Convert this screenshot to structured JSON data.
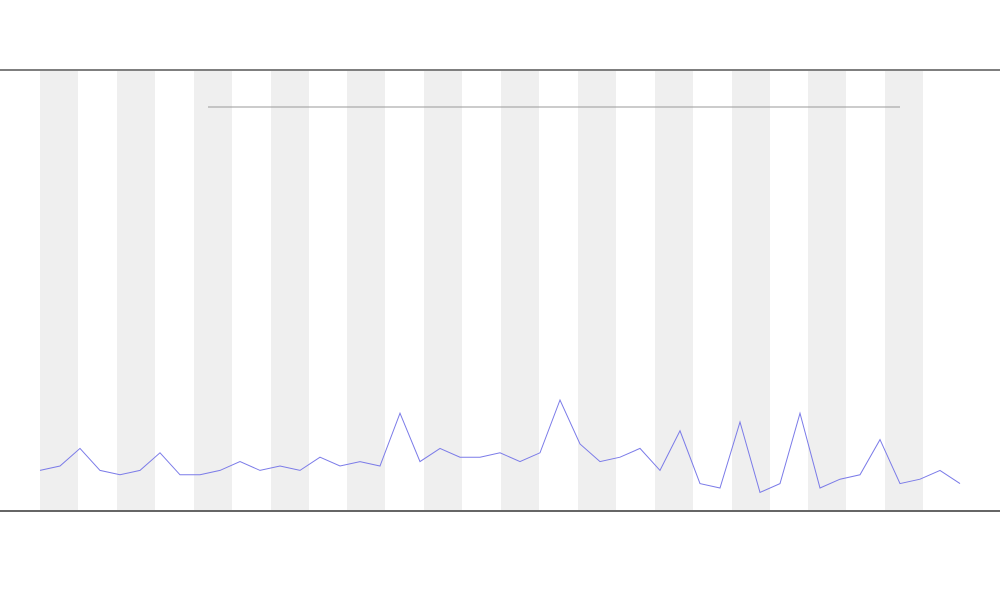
{
  "chart_data": {
    "type": "line",
    "x": [
      0,
      1,
      2,
      3,
      4,
      5,
      6,
      7,
      8,
      9,
      10,
      11,
      12,
      13,
      14,
      15,
      16,
      17,
      18,
      19,
      20,
      21,
      22,
      23,
      24,
      25,
      26,
      27,
      28,
      29,
      30,
      31,
      32,
      33,
      34,
      35,
      36,
      37,
      38,
      39,
      40,
      41,
      42,
      43,
      44,
      45,
      46
    ],
    "series": [
      {
        "color": "#7b7be8",
        "values": [
          9,
          10,
          14,
          9,
          8,
          9,
          13,
          8,
          8,
          9,
          11,
          9,
          10,
          9,
          12,
          10,
          11,
          10,
          22,
          11,
          14,
          12,
          12,
          13,
          11,
          13,
          25,
          15,
          11,
          12,
          14,
          9,
          18,
          6,
          5,
          20,
          4,
          6,
          22,
          5,
          7,
          8,
          16,
          6,
          7,
          9,
          6
        ]
      }
    ],
    "xlim": [
      0,
      46
    ],
    "ylim": [
      0,
      100
    ]
  }
}
